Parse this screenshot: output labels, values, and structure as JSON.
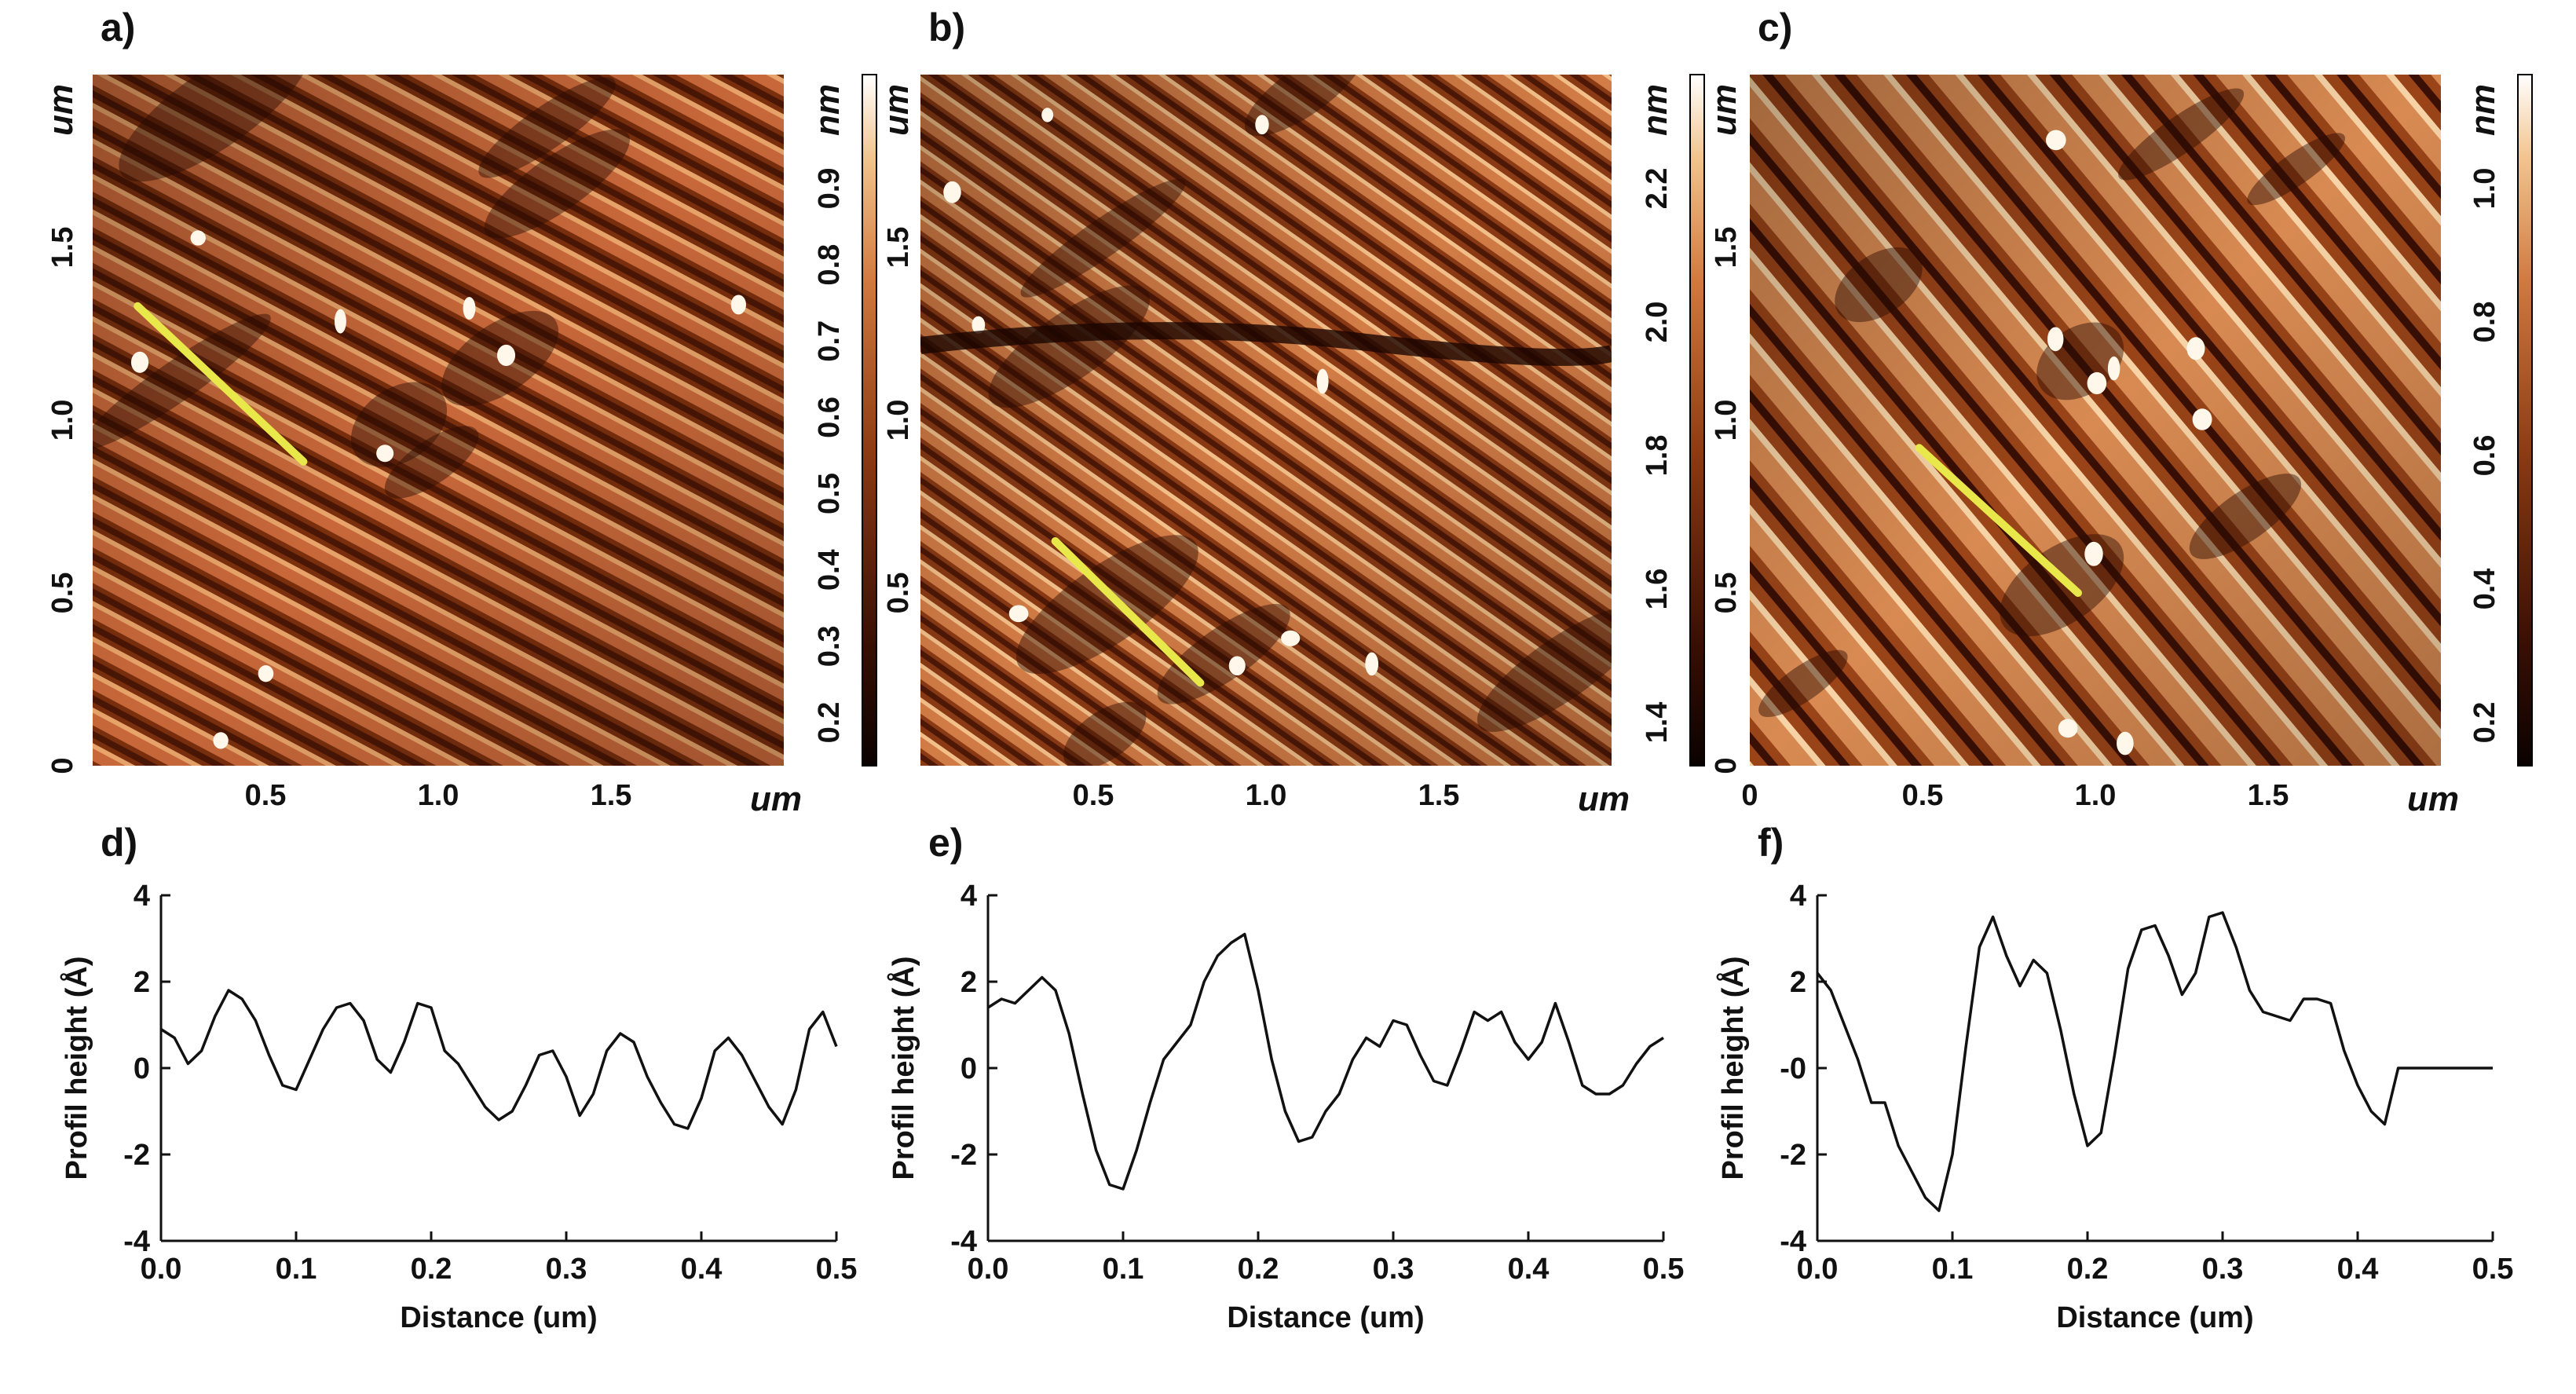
{
  "colors": {
    "afm_dark": "#2a0a02",
    "afm_mid": "#8b3a12",
    "afm_light": "#d9874a",
    "afm_bright": "#fff4de",
    "profile_line": "#e8e84a",
    "plot_line": "#111111"
  },
  "afm_panels": [
    {
      "label": "a)",
      "x_unit": "um",
      "y_unit": "um",
      "z_unit": "nm",
      "x_ticks": [
        "0.5",
        "1.0",
        "1.5"
      ],
      "y_ticks": [
        "0",
        "0.5",
        "1.0",
        "1.5"
      ],
      "z_ticks": [
        "0.2",
        "0.3",
        "0.4",
        "0.5",
        "0.6",
        "0.7",
        "0.8",
        "0.9"
      ],
      "lateral_ticks": [
        "0.5",
        "1.0",
        "1.5"
      ],
      "lateral_unit": "um",
      "profile_line": {
        "start_um": [
          0.13,
          1.33
        ],
        "end_um": [
          0.61,
          0.88
        ]
      }
    },
    {
      "label": "b)",
      "x_unit": "um",
      "y_unit": "",
      "z_unit": "nm",
      "x_ticks": [
        "0.5",
        "1.0",
        "1.5"
      ],
      "y_ticks": [],
      "z_ticks": [
        "1.4",
        "1.6",
        "1.8",
        "2.0",
        "2.2"
      ],
      "lateral_ticks": [
        "0",
        "0.5",
        "1.0",
        "1.5"
      ],
      "lateral_unit": "um",
      "profile_line": {
        "start_um": [
          0.39,
          0.65
        ],
        "end_um": [
          0.81,
          0.24
        ]
      }
    },
    {
      "label": "c)",
      "x_unit": "um",
      "y_unit": "",
      "z_unit": "nm",
      "x_ticks": [
        "0",
        "0.5",
        "1.0",
        "1.5"
      ],
      "y_ticks": [],
      "z_ticks": [
        "0.2",
        "0.4",
        "0.6",
        "0.8",
        "1.0"
      ],
      "lateral_ticks": [],
      "lateral_unit": "",
      "profile_line": {
        "start_um": [
          0.49,
          0.92
        ],
        "end_um": [
          0.95,
          0.5
        ]
      }
    }
  ],
  "chart_data": [
    {
      "type": "line",
      "label": "d)",
      "title": "",
      "xlabel": "Distance (um)",
      "ylabel": "Profil height (Å)",
      "xlim": [
        0,
        0.5
      ],
      "ylim": [
        -4,
        4
      ],
      "x_ticks": [
        "0.0",
        "0.1",
        "0.2",
        "0.3",
        "0.4",
        "0.5"
      ],
      "y_ticks": [
        "-4",
        "-2",
        "0",
        "2",
        "4"
      ],
      "series": [
        {
          "name": "profile",
          "x": [
            0,
            0.01,
            0.02,
            0.03,
            0.04,
            0.05,
            0.06,
            0.07,
            0.08,
            0.09,
            0.1,
            0.11,
            0.12,
            0.13,
            0.14,
            0.15,
            0.16,
            0.17,
            0.18,
            0.19,
            0.2,
            0.21,
            0.22,
            0.23,
            0.24,
            0.25,
            0.26,
            0.27,
            0.28,
            0.29,
            0.3,
            0.31,
            0.32,
            0.33,
            0.34,
            0.35,
            0.36,
            0.37,
            0.38,
            0.39,
            0.4,
            0.41,
            0.42,
            0.43,
            0.44,
            0.45,
            0.46,
            0.47,
            0.48,
            0.49,
            0.5
          ],
          "values": [
            0.9,
            0.7,
            0.1,
            0.4,
            1.2,
            1.8,
            1.6,
            1.1,
            0.3,
            -0.4,
            -0.5,
            0.2,
            0.9,
            1.4,
            1.5,
            1.1,
            0.2,
            -0.1,
            0.6,
            1.5,
            1.4,
            0.4,
            0.1,
            -0.4,
            -0.9,
            -1.2,
            -1.0,
            -0.4,
            0.3,
            0.4,
            -0.2,
            -1.1,
            -0.6,
            0.4,
            0.8,
            0.6,
            -0.2,
            -0.8,
            -1.3,
            -1.4,
            -0.7,
            0.4,
            0.7,
            0.3,
            -0.3,
            -0.9,
            -1.3,
            -0.5,
            0.9,
            1.3,
            0.5
          ]
        }
      ]
    },
    {
      "type": "line",
      "label": "e)",
      "title": "",
      "xlabel": "Distance (um)",
      "ylabel": "Profil height (Å)",
      "xlim": [
        0,
        0.5
      ],
      "ylim": [
        -4,
        4
      ],
      "x_ticks": [
        "0.0",
        "0.1",
        "0.2",
        "0.3",
        "0.4",
        "0.5"
      ],
      "y_ticks": [
        "-4",
        "-2",
        "0",
        "2",
        "4"
      ],
      "series": [
        {
          "name": "profile",
          "x": [
            0,
            0.01,
            0.02,
            0.03,
            0.04,
            0.05,
            0.06,
            0.07,
            0.08,
            0.09,
            0.1,
            0.11,
            0.12,
            0.13,
            0.14,
            0.15,
            0.16,
            0.17,
            0.18,
            0.19,
            0.2,
            0.21,
            0.22,
            0.23,
            0.24,
            0.25,
            0.26,
            0.27,
            0.28,
            0.29,
            0.3,
            0.31,
            0.32,
            0.33,
            0.34,
            0.35,
            0.36,
            0.37,
            0.38,
            0.39,
            0.4,
            0.41,
            0.42,
            0.43,
            0.44,
            0.45,
            0.46,
            0.47,
            0.48,
            0.49,
            0.5
          ],
          "values": [
            1.4,
            1.6,
            1.5,
            1.8,
            2.1,
            1.8,
            0.8,
            -0.6,
            -1.9,
            -2.7,
            -2.8,
            -1.9,
            -0.8,
            0.2,
            0.6,
            1.0,
            2.0,
            2.6,
            2.9,
            3.1,
            1.8,
            0.2,
            -1.0,
            -1.7,
            -1.6,
            -1.0,
            -0.6,
            0.2,
            0.7,
            0.5,
            1.1,
            1.0,
            0.3,
            -0.3,
            -0.4,
            0.4,
            1.3,
            1.1,
            1.3,
            0.6,
            0.2,
            0.6,
            1.5,
            0.6,
            -0.4,
            -0.6,
            -0.6,
            -0.4,
            0.1,
            0.5,
            0.7
          ]
        }
      ]
    },
    {
      "type": "line",
      "label": "f)",
      "title": "",
      "xlabel": "Distance (um)",
      "ylabel": "Profil height (Å)",
      "xlim": [
        0,
        0.5
      ],
      "ylim": [
        -4,
        4
      ],
      "x_ticks": [
        "0.0",
        "0.1",
        "0.2",
        "0.3",
        "0.4",
        "0.5"
      ],
      "y_ticks": [
        "-4",
        "-2",
        "-0",
        "2",
        "4"
      ],
      "series": [
        {
          "name": "profile",
          "x": [
            0,
            0.01,
            0.02,
            0.03,
            0.04,
            0.05,
            0.06,
            0.07,
            0.08,
            0.09,
            0.1,
            0.11,
            0.12,
            0.13,
            0.14,
            0.15,
            0.16,
            0.17,
            0.18,
            0.19,
            0.2,
            0.21,
            0.22,
            0.23,
            0.24,
            0.25,
            0.26,
            0.27,
            0.28,
            0.29,
            0.3,
            0.31,
            0.32,
            0.33,
            0.34,
            0.35,
            0.36,
            0.37,
            0.38,
            0.39,
            0.4,
            0.41,
            0.42,
            0.43,
            0.44,
            0.45,
            0.46,
            0.47,
            0.48,
            0.49,
            0.5
          ],
          "values": [
            2.2,
            1.8,
            1.0,
            0.2,
            -0.8,
            -0.8,
            -1.8,
            -2.4,
            -3.0,
            -3.3,
            -2.0,
            0.5,
            2.8,
            3.5,
            2.6,
            1.9,
            2.5,
            2.2,
            0.9,
            -0.6,
            -1.8,
            -1.5,
            0.3,
            2.3,
            3.2,
            3.3,
            2.6,
            1.7,
            2.2,
            3.5,
            3.6,
            2.8,
            1.8,
            1.3,
            1.2,
            1.1,
            1.6,
            1.6,
            1.5,
            0.4,
            -0.4,
            -1.0,
            -1.3,
            0.0,
            0.0,
            0.0,
            0.0,
            0.0,
            0.0,
            0.0,
            0.0
          ]
        }
      ]
    }
  ]
}
